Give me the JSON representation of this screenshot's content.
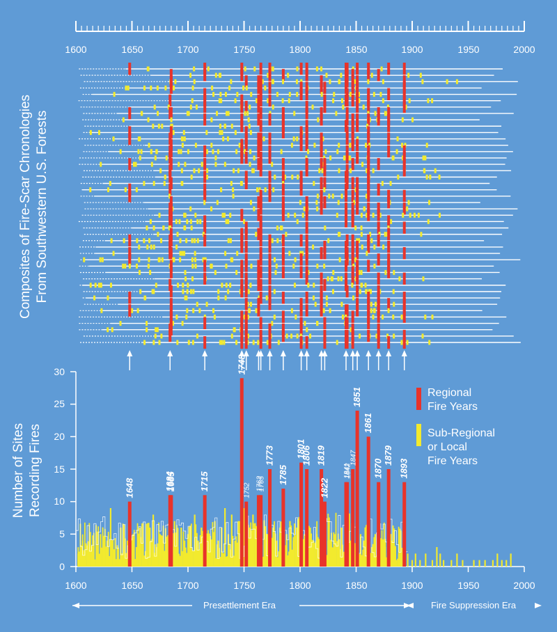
{
  "colors": {
    "background": "#5f9bd6",
    "regional": "#e8332a",
    "local": "#f2ea2e",
    "line": "#ffffff"
  },
  "top_panel": {
    "ylabel_line1": "Composites of Fire-Scar Chronologies",
    "ylabel_line2": "From Southwestern U.S. Forests",
    "x_ticks": [
      "1600",
      "1650",
      "1700",
      "1750",
      "1800",
      "1850",
      "1900",
      "1950",
      "2000"
    ]
  },
  "bottom_panel": {
    "ylabel_line1": "Number of Sites",
    "ylabel_line2": "Recording Fires",
    "y_ticks": [
      "0",
      "5",
      "10",
      "15",
      "20",
      "25",
      "30"
    ],
    "x_ticks": [
      "1600",
      "1650",
      "1700",
      "1750",
      "1800",
      "1850",
      "1900",
      "1950",
      "2000"
    ],
    "legend": {
      "regional_line1": "Regional",
      "regional_line2": "Fire Years",
      "local_line1": "Sub-Regional",
      "local_line2": "or Local",
      "local_line3": "Fire Years"
    }
  },
  "eras": {
    "presettlement": "Presettlement Era",
    "suppression": "Fire Suppression Era"
  },
  "chart_data": [
    {
      "type": "scatter",
      "description_from_figure": "composite fire-scar chronologies (one line per site), 1600-2000",
      "xlim": [
        1600,
        2000
      ],
      "regional_fire_years": [
        1648,
        1684,
        1685,
        1715,
        1748,
        1752,
        1763,
        1765,
        1773,
        1785,
        1801,
        1806,
        1819,
        1822,
        1841,
        1842,
        1847,
        1851,
        1861,
        1870,
        1879,
        1893
      ],
      "num_chronologies": 44
    },
    {
      "type": "bar",
      "xlim": [
        1600,
        2000
      ],
      "ylim": [
        0,
        30
      ],
      "regional_fire_years": [
        {
          "year": 1648,
          "sites": 10,
          "label": "1648"
        },
        {
          "year": 1684,
          "sites": 11,
          "label": "1684"
        },
        {
          "year": 1685,
          "sites": 11,
          "label": "1685"
        },
        {
          "year": 1715,
          "sites": 11,
          "label": "1715"
        },
        {
          "year": 1748,
          "sites": 29,
          "label": "1748"
        },
        {
          "year": 1752,
          "sites": 10,
          "label": "1752"
        },
        {
          "year": 1763,
          "sites": 11,
          "label": "1763"
        },
        {
          "year": 1765,
          "sites": 11,
          "label": "1765"
        },
        {
          "year": 1773,
          "sites": 15,
          "label": "1773"
        },
        {
          "year": 1785,
          "sites": 12,
          "label": "1785"
        },
        {
          "year": 1801,
          "sites": 16,
          "label": "1801"
        },
        {
          "year": 1806,
          "sites": 15,
          "label": "1806"
        },
        {
          "year": 1819,
          "sites": 15,
          "label": "1819"
        },
        {
          "year": 1822,
          "sites": 10,
          "label": "1822"
        },
        {
          "year": 1841,
          "sites": 13,
          "label": "1841"
        },
        {
          "year": 1842,
          "sites": 13,
          "label": "1842"
        },
        {
          "year": 1847,
          "sites": 15,
          "label": "1847"
        },
        {
          "year": 1851,
          "sites": 24,
          "label": "1851"
        },
        {
          "year": 1861,
          "sites": 20,
          "label": "1861"
        },
        {
          "year": 1870,
          "sites": 13,
          "label": "1870"
        },
        {
          "year": 1879,
          "sites": 15,
          "label": "1879"
        },
        {
          "year": 1893,
          "sites": 13,
          "label": "1893"
        }
      ],
      "local_fire_years_approx": [
        [
          1602,
          2
        ],
        [
          1604,
          3
        ],
        [
          1606,
          4
        ],
        [
          1608,
          1
        ],
        [
          1611,
          2
        ],
        [
          1614,
          3
        ],
        [
          1616,
          4
        ],
        [
          1619,
          2
        ],
        [
          1622,
          5
        ],
        [
          1625,
          3
        ],
        [
          1628,
          4
        ],
        [
          1631,
          9
        ],
        [
          1634,
          2
        ],
        [
          1637,
          3
        ],
        [
          1640,
          6
        ],
        [
          1643,
          2
        ],
        [
          1646,
          4
        ],
        [
          1651,
          5
        ],
        [
          1654,
          3
        ],
        [
          1657,
          6
        ],
        [
          1660,
          4
        ],
        [
          1663,
          2
        ],
        [
          1666,
          6
        ],
        [
          1669,
          8
        ],
        [
          1672,
          3
        ],
        [
          1675,
          5
        ],
        [
          1678,
          4
        ],
        [
          1681,
          2
        ],
        [
          1688,
          7
        ],
        [
          1691,
          3
        ],
        [
          1694,
          6
        ],
        [
          1697,
          4
        ],
        [
          1700,
          5
        ],
        [
          1703,
          3
        ],
        [
          1706,
          8
        ],
        [
          1709,
          4
        ],
        [
          1712,
          6
        ],
        [
          1718,
          5
        ],
        [
          1721,
          3
        ],
        [
          1724,
          7
        ],
        [
          1727,
          4
        ],
        [
          1730,
          6
        ],
        [
          1733,
          9
        ],
        [
          1736,
          5
        ],
        [
          1739,
          8
        ],
        [
          1742,
          4
        ],
        [
          1745,
          7
        ],
        [
          1750,
          9
        ],
        [
          1755,
          6
        ],
        [
          1758,
          8
        ],
        [
          1761,
          5
        ],
        [
          1768,
          7
        ],
        [
          1771,
          5
        ],
        [
          1776,
          6
        ],
        [
          1779,
          4
        ],
        [
          1782,
          6
        ],
        [
          1788,
          5
        ],
        [
          1791,
          7
        ],
        [
          1794,
          4
        ],
        [
          1797,
          6
        ],
        [
          1804,
          5
        ],
        [
          1809,
          6
        ],
        [
          1812,
          4
        ],
        [
          1815,
          5
        ],
        [
          1825,
          4
        ],
        [
          1828,
          3
        ],
        [
          1831,
          5
        ],
        [
          1834,
          4
        ],
        [
          1837,
          6
        ],
        [
          1845,
          4
        ],
        [
          1849,
          3
        ],
        [
          1854,
          5
        ],
        [
          1857,
          4
        ],
        [
          1864,
          3
        ],
        [
          1867,
          5
        ],
        [
          1873,
          4
        ],
        [
          1876,
          3
        ],
        [
          1882,
          4
        ],
        [
          1885,
          3
        ],
        [
          1888,
          2
        ],
        [
          1896,
          2
        ],
        [
          1900,
          1
        ],
        [
          1903,
          2
        ],
        [
          1907,
          1
        ],
        [
          1912,
          2
        ],
        [
          1918,
          1
        ],
        [
          1922,
          3
        ],
        [
          1925,
          2
        ],
        [
          1928,
          1
        ],
        [
          1935,
          1
        ],
        [
          1940,
          2
        ],
        [
          1945,
          1
        ],
        [
          1955,
          1
        ],
        [
          1960,
          1
        ],
        [
          1965,
          1
        ],
        [
          1972,
          1
        ],
        [
          1976,
          2
        ],
        [
          1980,
          1
        ],
        [
          1984,
          1
        ],
        [
          1988,
          2
        ]
      ]
    }
  ]
}
